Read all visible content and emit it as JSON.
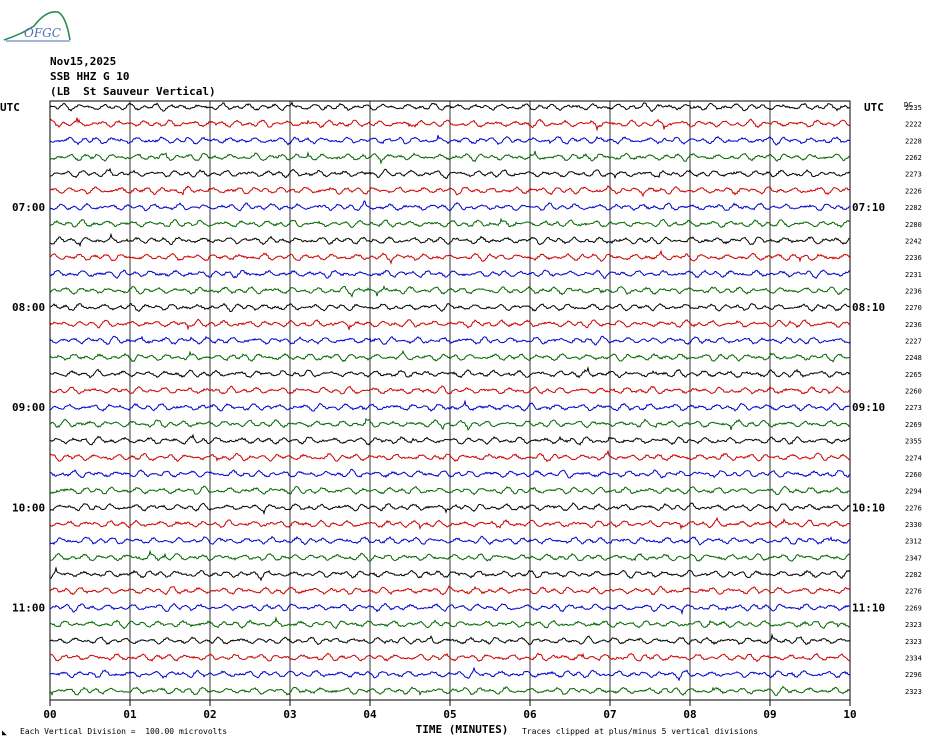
{
  "logo": {
    "text": "OFGC"
  },
  "header": {
    "date": "Nov15,2025",
    "station": "SSB HHZ G 10",
    "site": "(LB  St Sauveur Vertical)"
  },
  "axis_labels": {
    "left_utc": "UTC",
    "right_utc": "UTC",
    "right_code": "DC",
    "xlabel": "TIME (MINUTES)"
  },
  "footer": {
    "division": "Each Vertical Division =  100.00 microvolts",
    "clipping": "Traces clipped at plus/minus 5 vertical divisions",
    "corner": "◣"
  },
  "colors": {
    "trace_cycle": [
      "#000000",
      "#cc0000",
      "#0000cc",
      "#006600"
    ],
    "grid": "#000000"
  },
  "chart_data": {
    "type": "line",
    "title": "",
    "xlabel": "TIME (MINUTES)",
    "xlim": [
      0,
      10
    ],
    "x_ticks": [
      "00",
      "01",
      "02",
      "03",
      "04",
      "05",
      "06",
      "07",
      "08",
      "09",
      "10"
    ],
    "left_hour_labels": [
      {
        "row": 6,
        "label": "07:00"
      },
      {
        "row": 12,
        "label": "08:00"
      },
      {
        "row": 18,
        "label": "09:00"
      },
      {
        "row": 24,
        "label": "10:00"
      },
      {
        "row": 30,
        "label": "11:00"
      }
    ],
    "right_hour_labels": [
      {
        "row": 6,
        "label": "07:10"
      },
      {
        "row": 12,
        "label": "08:10"
      },
      {
        "row": 18,
        "label": "09:10"
      },
      {
        "row": 24,
        "label": "10:10"
      },
      {
        "row": 30,
        "label": "11:10"
      }
    ],
    "dc_offsets": [
      "2235",
      "2222",
      "2228",
      "2262",
      "2273",
      "2226",
      "2282",
      "2280",
      "2242",
      "2236",
      "2231",
      "2236",
      "2270",
      "2236",
      "2227",
      "2248",
      "2265",
      "2260",
      "2273",
      "2269",
      "2355",
      "2274",
      "2260",
      "2294",
      "2276",
      "2330",
      "2312",
      "2347",
      "2282",
      "2276",
      "2269",
      "2323",
      "2323",
      "2334",
      "2296",
      "2323"
    ],
    "trace_count": 36
  }
}
